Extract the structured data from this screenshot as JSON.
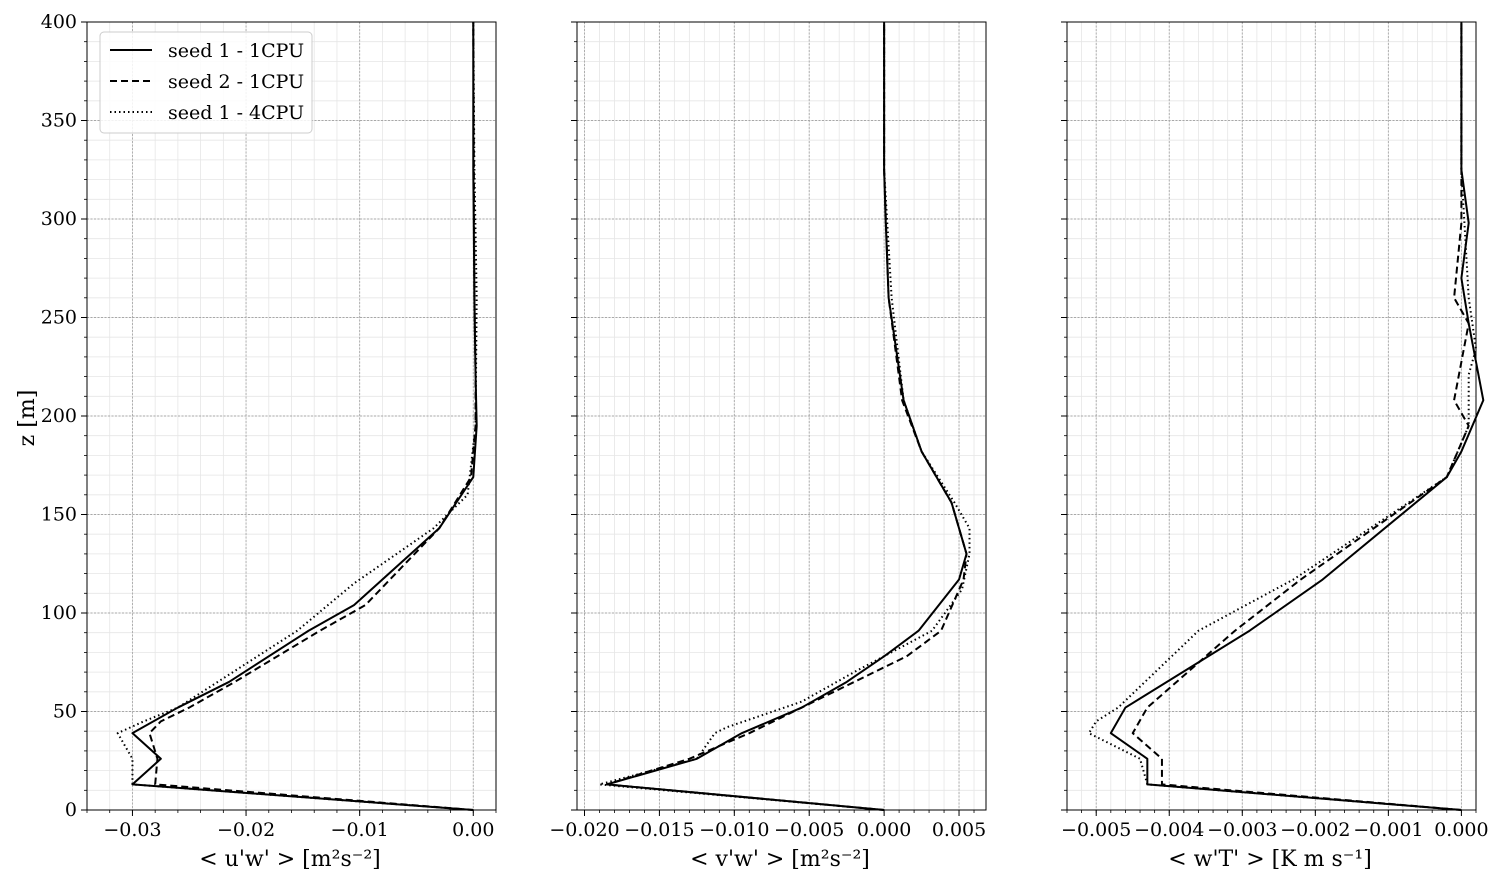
{
  "figure": {
    "legend": [
      "seed 1 - 1CPU",
      "seed 2 - 1CPU",
      "seed 1 - 4CPU"
    ]
  },
  "chart_data": [
    {
      "type": "line",
      "ylabel": "z [m]",
      "xlabel": "< u'w' > [m²s⁻²]",
      "xlim": [
        -0.034,
        0.002
      ],
      "ylim": [
        0,
        400
      ],
      "xticks": [
        -0.03,
        -0.02,
        -0.01,
        0.0
      ],
      "xtick_labels": [
        "−0.03",
        "−0.02",
        "−0.01",
        "0.00"
      ],
      "yticks": [
        0,
        50,
        100,
        150,
        200,
        250,
        300,
        350,
        400
      ],
      "ytick_labels": [
        "0",
        "50",
        "100",
        "150",
        "200",
        "250",
        "300",
        "350",
        "400"
      ],
      "grid": true,
      "legend": "top-left",
      "series": [
        {
          "name": "seed 1 - 1CPU",
          "style": "solid",
          "x": [
            0.0,
            -0.03,
            -0.0275,
            -0.03,
            -0.026,
            -0.0215,
            -0.0145,
            -0.0105,
            -0.003,
            0.0,
            0.0003,
            0.0002,
            0.0001,
            0.0,
            0.0
          ],
          "y": [
            0,
            13,
            26,
            39,
            52,
            65,
            91,
            104,
            143,
            169,
            195,
            221,
            260,
            325,
            400
          ]
        },
        {
          "name": "seed 2 - 1CPU",
          "style": "dashed",
          "x": [
            0.0,
            -0.028,
            -0.0278,
            -0.0285,
            -0.0275,
            -0.025,
            -0.021,
            -0.0135,
            -0.0095,
            -0.003,
            -0.0002,
            0.0002,
            0.0002,
            0.0001,
            0.0
          ],
          "y": [
            0,
            13,
            26,
            39,
            45,
            52,
            65,
            91,
            104,
            143,
            169,
            195,
            221,
            260,
            400
          ]
        },
        {
          "name": "seed 1 - 4CPU",
          "style": "dotted",
          "x": [
            0.0,
            -0.03,
            -0.03,
            -0.0313,
            -0.029,
            -0.026,
            -0.0225,
            -0.0155,
            -0.0105,
            -0.0035,
            -0.0005,
            0.0002,
            0.0003,
            0.0001,
            0.0
          ],
          "y": [
            0,
            13,
            26,
            39,
            45,
            52,
            65,
            91,
            115,
            143,
            160,
            195,
            260,
            325,
            400
          ]
        }
      ]
    },
    {
      "type": "line",
      "xlabel": "< v'w' > [m²s⁻²]",
      "xlim": [
        -0.0205,
        0.0068
      ],
      "ylim": [
        0,
        400
      ],
      "xticks": [
        -0.02,
        -0.015,
        -0.01,
        -0.005,
        0.0,
        0.005
      ],
      "xtick_labels": [
        "−0.020",
        "−0.015",
        "−0.010",
        "−0.005",
        "0.000",
        "0.005"
      ],
      "yticks": [
        0,
        50,
        100,
        150,
        200,
        250,
        300,
        350,
        400
      ],
      "grid": true,
      "series": [
        {
          "name": "seed 1 - 1CPU",
          "style": "solid",
          "x": [
            0.0,
            -0.0185,
            -0.0125,
            -0.0095,
            -0.0055,
            -0.0025,
            0.0,
            0.0023,
            0.005,
            0.0055,
            0.0045,
            0.0025,
            0.0013,
            0.0003,
            0.0001,
            0.0,
            0.0
          ],
          "y": [
            0,
            13,
            26,
            39,
            52,
            65,
            78,
            91,
            117,
            130,
            156,
            182,
            208,
            260,
            300,
            325,
            400
          ]
        },
        {
          "name": "seed 2 - 1CPU",
          "style": "dashed",
          "x": [
            0.0,
            -0.0185,
            -0.013,
            -0.009,
            -0.0055,
            -0.002,
            0.0015,
            0.0038,
            0.0053,
            0.0055,
            0.0045,
            0.0025,
            0.0012,
            0.0003,
            0.0,
            0.0
          ],
          "y": [
            0,
            13,
            26,
            39,
            52,
            65,
            78,
            91,
            117,
            130,
            156,
            182,
            208,
            260,
            325,
            400
          ]
        },
        {
          "name": "seed 1 - 4CPU",
          "style": "dotted",
          "x": [
            0.0,
            -0.019,
            -0.0125,
            -0.0113,
            -0.0105,
            -0.0055,
            -0.002,
            0.0032,
            0.0052,
            0.0057,
            0.0057,
            0.0047,
            0.0025,
            0.0013,
            0.0005,
            0.0,
            0.0
          ],
          "y": [
            0,
            13,
            26,
            39,
            42,
            55,
            70,
            91,
            112,
            130,
            143,
            156,
            182,
            208,
            260,
            325,
            400
          ]
        }
      ]
    },
    {
      "type": "line",
      "xlabel": "< w'T' > [K m s⁻¹]",
      "xlim": [
        -0.0054,
        0.0002
      ],
      "ylim": [
        0,
        400
      ],
      "xticks": [
        -0.005,
        -0.004,
        -0.003,
        -0.002,
        -0.001,
        0.0
      ],
      "xtick_labels": [
        "−0.005",
        "−0.004",
        "−0.003",
        "−0.002",
        "−0.001",
        "0.000"
      ],
      "yticks": [
        0,
        50,
        100,
        150,
        200,
        250,
        300,
        350,
        400
      ],
      "grid": true,
      "series": [
        {
          "name": "seed 1 - 1CPU",
          "style": "solid",
          "x": [
            0.0,
            -0.0043,
            -0.0043,
            -0.0048,
            -0.0046,
            -0.0029,
            -0.0019,
            -0.0002,
            0.0,
            0.0003,
            0.0001,
            0.0,
            0.0001,
            0.0,
            0.0,
            0.0
          ],
          "y": [
            0,
            13,
            26,
            39,
            52,
            91,
            117,
            169,
            182,
            208,
            247,
            270,
            298,
            325,
            355,
            400
          ]
        },
        {
          "name": "seed 2 - 1CPU",
          "style": "dashed",
          "x": [
            0.0,
            -0.0041,
            -0.0041,
            -0.0045,
            -0.0043,
            -0.0031,
            -0.0022,
            -0.0002,
            0.0001,
            -0.0001,
            0.0001,
            -0.0001,
            0.0,
            0.0,
            0.0
          ],
          "y": [
            0,
            13,
            26,
            39,
            52,
            91,
            117,
            169,
            195,
            208,
            247,
            260,
            298,
            325,
            400
          ]
        },
        {
          "name": "seed 1 - 4CPU",
          "style": "dotted",
          "x": [
            0.0,
            -0.0043,
            -0.0044,
            -0.0051,
            -0.005,
            -0.0047,
            -0.0036,
            -0.0023,
            -0.0002,
            0.0001,
            0.0001,
            0.0002,
            0.0001,
            0.0,
            0.0
          ],
          "y": [
            0,
            13,
            26,
            39,
            45,
            52,
            91,
            117,
            169,
            195,
            221,
            234,
            260,
            325,
            400
          ]
        }
      ]
    }
  ]
}
